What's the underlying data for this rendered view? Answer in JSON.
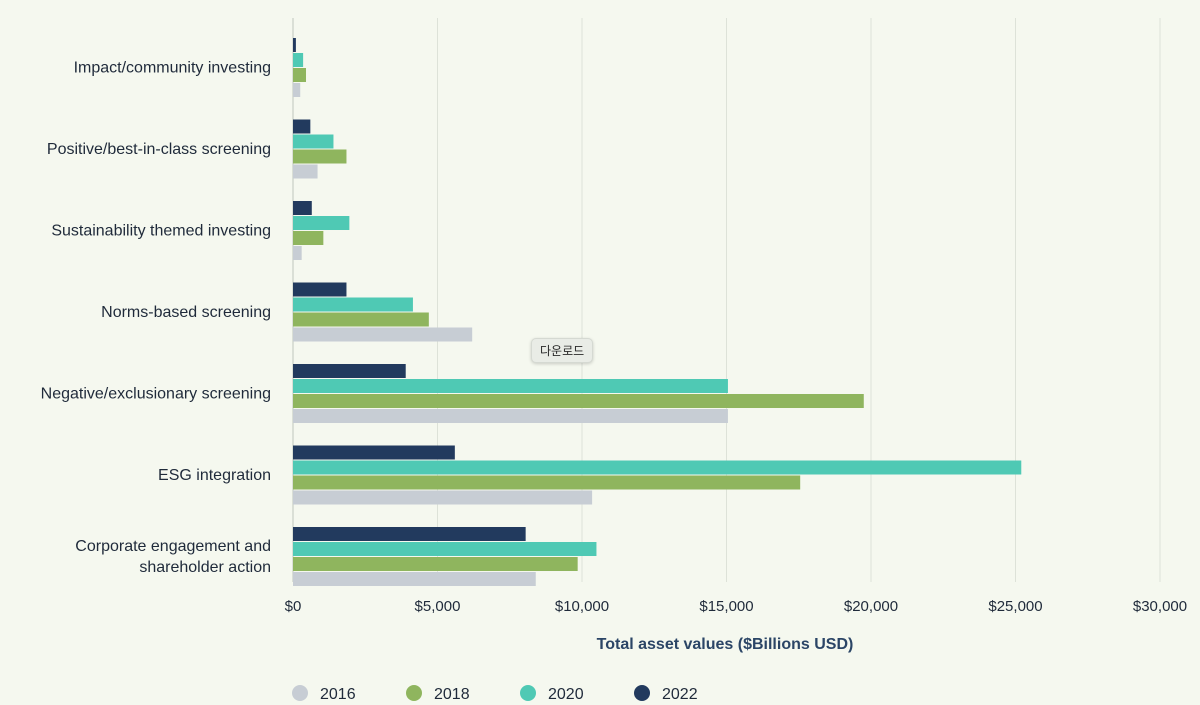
{
  "chart_data": {
    "type": "bar",
    "orientation": "horizontal",
    "categories": [
      "Impact/community investing",
      "Positive/best-in-class screening",
      "Sustainability themed investing",
      "Norms-based screening",
      "Negative/exclusionary screening",
      "ESG integration",
      "Corporate engagement and shareholder action"
    ],
    "category_lines": [
      [
        "Impact/community investing"
      ],
      [
        "Positive/best-in-class screening"
      ],
      [
        "Sustainability themed investing"
      ],
      [
        "Norms-based screening"
      ],
      [
        "Negative/exclusionary screening"
      ],
      [
        "ESG integration"
      ],
      [
        "Corporate engagement and",
        "shareholder action"
      ]
    ],
    "series": [
      {
        "name": "2022",
        "color": "#223a5e",
        "values": [
          100,
          600,
          650,
          1850,
          3900,
          5600,
          8050
        ]
      },
      {
        "name": "2020",
        "color": "#4fc9b4",
        "values": [
          350,
          1400,
          1950,
          4150,
          15050,
          25200,
          10500
        ]
      },
      {
        "name": "2018",
        "color": "#8fb55e",
        "values": [
          450,
          1850,
          1050,
          4700,
          19750,
          17550,
          9850
        ]
      },
      {
        "name": "2016",
        "color": "#c7cdd4",
        "values": [
          250,
          850,
          300,
          6200,
          15050,
          10350,
          8400
        ]
      }
    ],
    "legend": [
      {
        "name": "2016",
        "color": "#c7cdd4"
      },
      {
        "name": "2018",
        "color": "#8fb55e"
      },
      {
        "name": "2020",
        "color": "#4fc9b4"
      },
      {
        "name": "2022",
        "color": "#223a5e"
      }
    ],
    "x_ticks": [
      0,
      5000,
      10000,
      15000,
      20000,
      25000,
      30000
    ],
    "x_tick_labels": [
      "$0",
      "$5,000",
      "$10,000",
      "$15,000",
      "$20,000",
      "$25,000",
      "$30,000"
    ],
    "xlim": [
      0,
      30000
    ],
    "xlabel": "Total asset values ($Billions USD)",
    "ylabel": "",
    "title": "",
    "grid": true,
    "legend_position": "bottom-left"
  },
  "tooltip": {
    "text": "다운로드"
  }
}
